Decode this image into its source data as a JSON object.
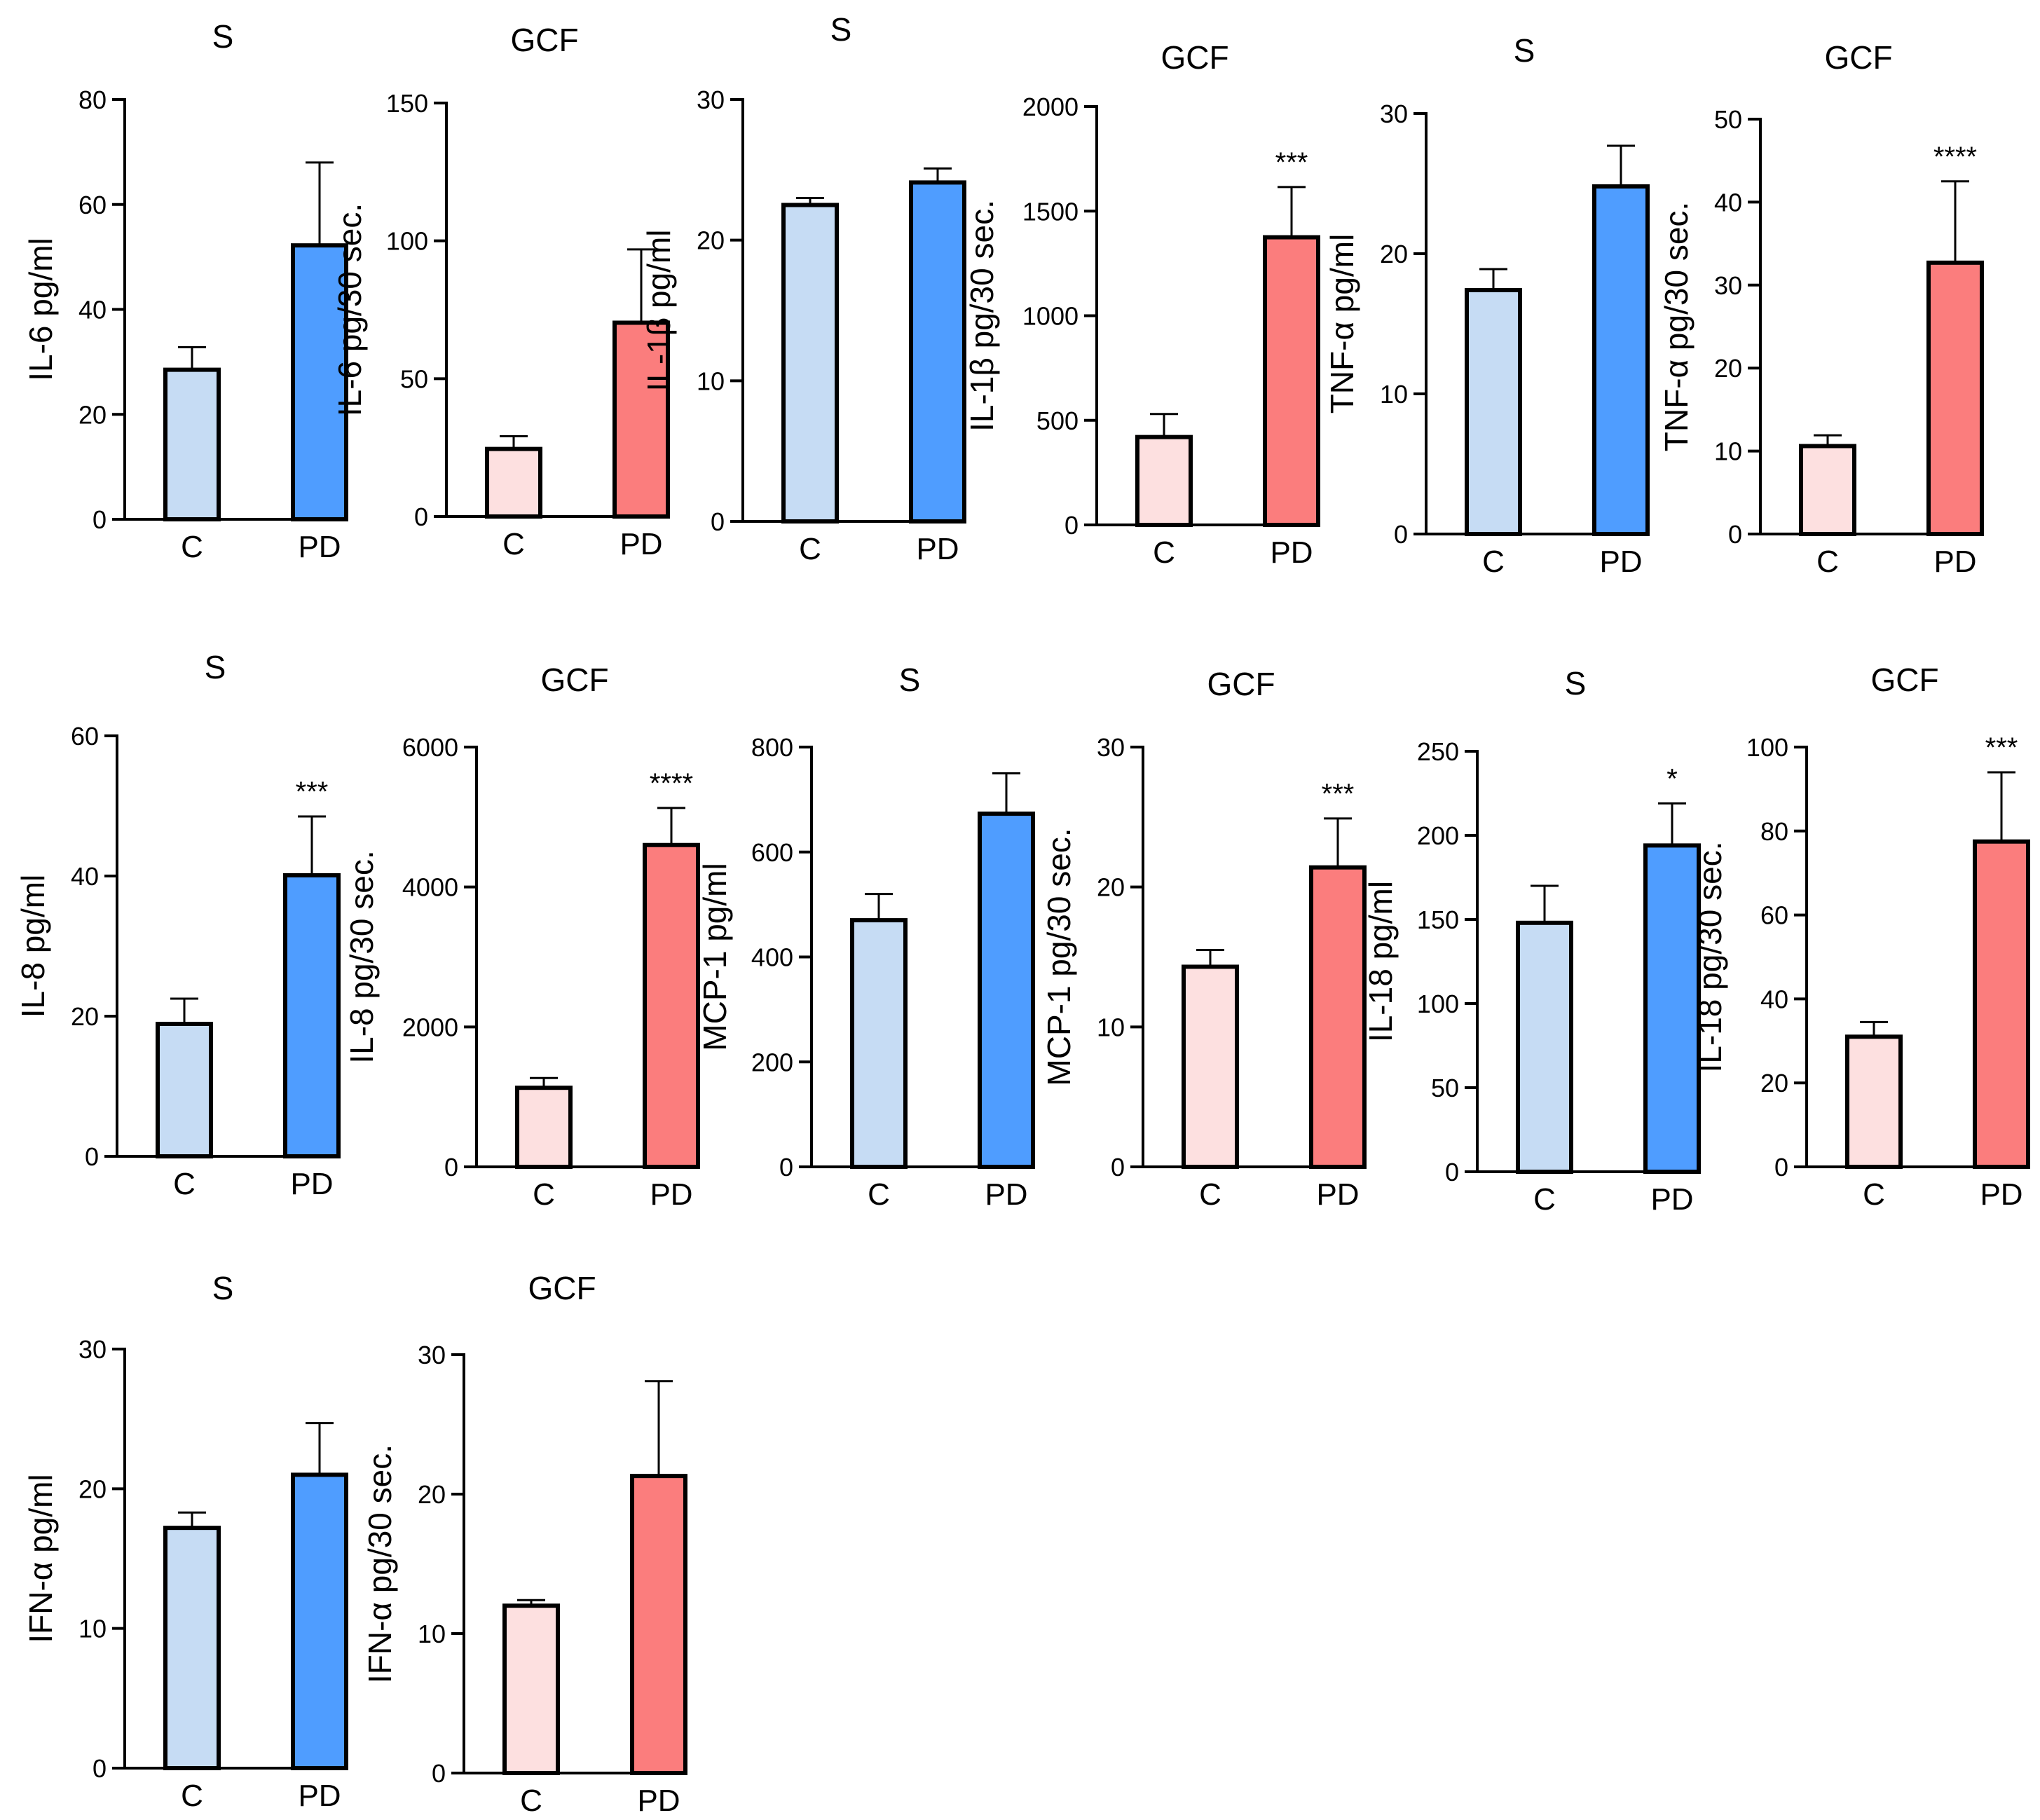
{
  "colors": {
    "serum_control": "#c6dcf4",
    "serum_pd": "#4f9dff",
    "gcf_control": "#fde0e0",
    "gcf_pd": "#fb7d7d",
    "axis": "#000000"
  },
  "chart_data": [
    {
      "type": "bar",
      "title": "S",
      "ylabel": "IL-6 pg/ml",
      "categories": [
        "C",
        "PD"
      ],
      "values": [
        28.5,
        52.2
      ],
      "errors": [
        4.3,
        15.8
      ],
      "ylim": [
        0,
        80
      ],
      "yticks": [
        "0",
        "20",
        "40",
        "60",
        "80"
      ],
      "significance": "",
      "sample": "serum"
    },
    {
      "type": "bar",
      "title": "GCF",
      "ylabel": "IL-6 pg/30 sec.",
      "categories": [
        "C",
        "PD"
      ],
      "values": [
        24.5,
        70.3
      ],
      "errors": [
        4.6,
        26.6
      ],
      "ylim": [
        0,
        150
      ],
      "yticks": [
        "0",
        "50",
        "100",
        "150"
      ],
      "significance": "",
      "sample": "gcf"
    },
    {
      "type": "bar",
      "title": "S",
      "ylabel": "IL-1β pg/ml",
      "categories": [
        "C",
        "PD"
      ],
      "values": [
        22.5,
        24.1
      ],
      "errors": [
        0.5,
        1.0
      ],
      "ylim": [
        0,
        30
      ],
      "yticks": [
        "0",
        "10",
        "20",
        "30"
      ],
      "significance": "",
      "sample": "serum"
    },
    {
      "type": "bar",
      "title": "GCF",
      "ylabel": "IL-1β pg/30 sec.",
      "categories": [
        "C",
        "PD"
      ],
      "values": [
        420,
        1375
      ],
      "errors": [
        110,
        240
      ],
      "ylim": [
        0,
        2000
      ],
      "yticks": [
        "0",
        "500",
        "1000",
        "1500",
        "2000"
      ],
      "significance": "***",
      "sample": "gcf"
    },
    {
      "type": "bar",
      "title": "S",
      "ylabel": "TNF-α pg/ml",
      "categories": [
        "C",
        "PD"
      ],
      "values": [
        17.4,
        24.8
      ],
      "errors": [
        1.5,
        2.9
      ],
      "ylim": [
        0,
        30
      ],
      "yticks": [
        "0",
        "10",
        "20",
        "30"
      ],
      "significance": "",
      "sample": "serum"
    },
    {
      "type": "bar",
      "title": "GCF",
      "ylabel": "TNF-α pg/30 sec.",
      "categories": [
        "C",
        "PD"
      ],
      "values": [
        10.6,
        32.7
      ],
      "errors": [
        1.3,
        9.8
      ],
      "ylim": [
        0,
        50
      ],
      "yticks": [
        "0",
        "10",
        "20",
        "30",
        "40",
        "50"
      ],
      "significance": "****",
      "sample": "gcf"
    },
    {
      "type": "bar",
      "title": "S",
      "ylabel": "IL-8 pg/ml",
      "categories": [
        "C",
        "PD"
      ],
      "values": [
        18.9,
        40.1
      ],
      "errors": [
        3.6,
        8.4
      ],
      "ylim": [
        0,
        60
      ],
      "yticks": [
        "0",
        "20",
        "40",
        "60"
      ],
      "significance": "***",
      "sample": "serum"
    },
    {
      "type": "bar",
      "title": "GCF",
      "ylabel": "IL-8 pg/30 sec.",
      "categories": [
        "C",
        "PD"
      ],
      "values": [
        1130,
        4600
      ],
      "errors": [
        140,
        530
      ],
      "ylim": [
        0,
        6000
      ],
      "yticks": [
        "0",
        "2000",
        "4000",
        "6000"
      ],
      "significance": "****",
      "sample": "gcf"
    },
    {
      "type": "bar",
      "title": "S",
      "ylabel": "MCP-1 pg/ml",
      "categories": [
        "C",
        "PD"
      ],
      "values": [
        470,
        673
      ],
      "errors": [
        50,
        77
      ],
      "ylim": [
        0,
        800
      ],
      "yticks": [
        "0",
        "200",
        "400",
        "600",
        "800"
      ],
      "significance": "",
      "sample": "serum"
    },
    {
      "type": "bar",
      "title": "GCF",
      "ylabel": "MCP-1 pg/30 sec.",
      "categories": [
        "C",
        "PD"
      ],
      "values": [
        14.3,
        21.4
      ],
      "errors": [
        1.2,
        3.5
      ],
      "ylim": [
        0,
        30
      ],
      "yticks": [
        "0",
        "10",
        "20",
        "30"
      ],
      "significance": "***",
      "sample": "gcf"
    },
    {
      "type": "bar",
      "title": "S",
      "ylabel": "IL-18 pg/ml",
      "categories": [
        "C",
        "PD"
      ],
      "values": [
        148,
        194
      ],
      "errors": [
        22,
        25
      ],
      "ylim": [
        0,
        250
      ],
      "yticks": [
        "0",
        "50",
        "100",
        "150",
        "200",
        "250"
      ],
      "significance": "*",
      "sample": "serum"
    },
    {
      "type": "bar",
      "title": "GCF",
      "ylabel": "IL-18 pg/30 sec.",
      "categories": [
        "C",
        "PD"
      ],
      "values": [
        31,
        77.5
      ],
      "errors": [
        3.5,
        16.5
      ],
      "ylim": [
        0,
        100
      ],
      "yticks": [
        "0",
        "20",
        "40",
        "60",
        "80",
        "100"
      ],
      "significance": "***",
      "sample": "gcf"
    },
    {
      "type": "bar",
      "title": "S",
      "ylabel": "IFN-α pg/ml",
      "categories": [
        "C",
        "PD"
      ],
      "values": [
        17.2,
        21.0
      ],
      "errors": [
        1.1,
        3.7
      ],
      "ylim": [
        0,
        30
      ],
      "yticks": [
        "0",
        "10",
        "20",
        "30"
      ],
      "significance": "",
      "sample": "serum"
    },
    {
      "type": "bar",
      "title": "GCF",
      "ylabel": "IFN-α pg/30 sec.",
      "categories": [
        "C",
        "PD"
      ],
      "values": [
        12.0,
        21.3
      ],
      "errors": [
        0.4,
        6.8
      ],
      "ylim": [
        0,
        30
      ],
      "yticks": [
        "0",
        "10",
        "20",
        "30"
      ],
      "significance": "",
      "sample": "gcf"
    }
  ]
}
